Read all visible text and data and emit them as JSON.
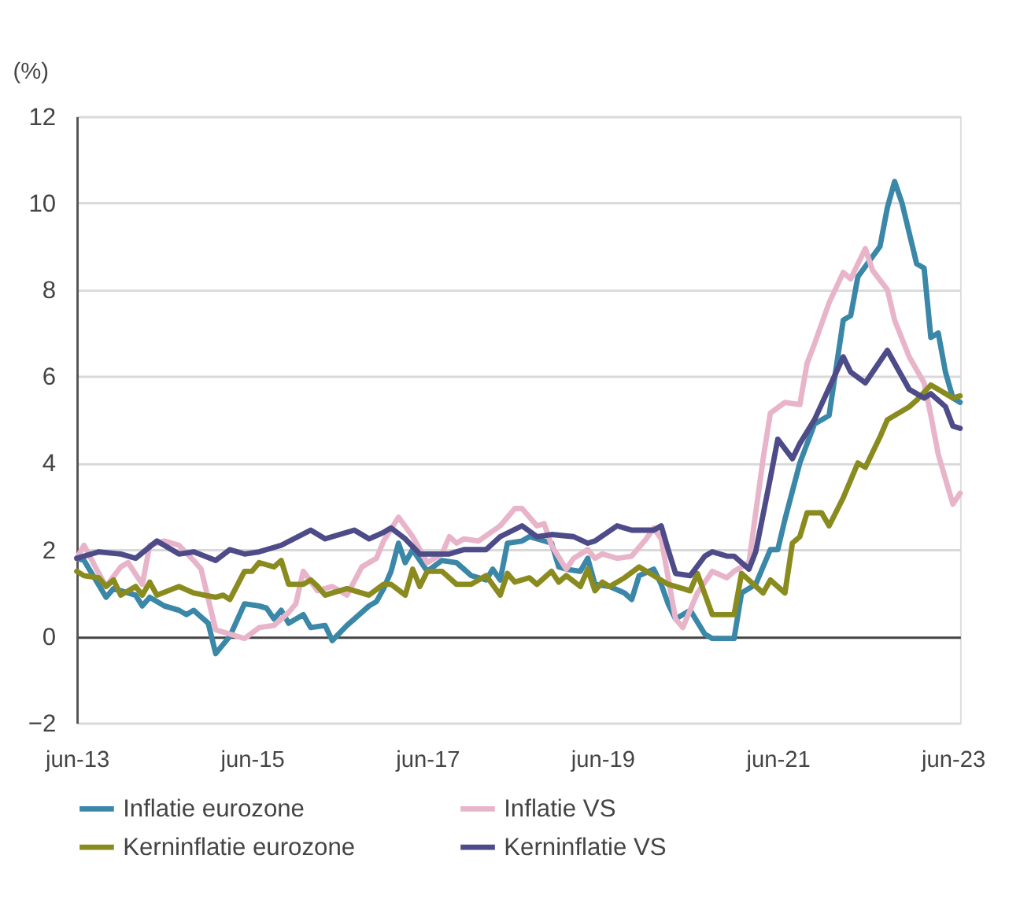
{
  "chart_data": {
    "type": "line",
    "ylabel": "(%)",
    "xlim": [
      "2013-06",
      "2023-07"
    ],
    "xticks": [
      {
        "value": "2013-06",
        "label": "jun-13"
      },
      {
        "value": "2015-06",
        "label": "jun-15"
      },
      {
        "value": "2017-06",
        "label": "jun-17"
      },
      {
        "value": "2019-06",
        "label": "jun-19"
      },
      {
        "value": "2021-06",
        "label": "jun-21"
      },
      {
        "value": "2023-06",
        "label": "jun-23"
      }
    ],
    "ylim": [
      -2,
      12
    ],
    "yticks": [
      -2,
      0,
      2,
      4,
      6,
      8,
      10,
      12
    ],
    "grid": "y",
    "legend": "bottom",
    "marker": "none",
    "line_style": "solid",
    "series": [
      {
        "name": "Inflatie eurozone",
        "color": "#3a87a8",
        "x": [
          "2013-06",
          "2013-07",
          "2013-10",
          "2013-11",
          "2014-02",
          "2014-03",
          "2014-04",
          "2014-06",
          "2014-08",
          "2014-09",
          "2014-10",
          "2014-12",
          "2015-01",
          "2015-03",
          "2015-05",
          "2015-07",
          "2015-08",
          "2015-09",
          "2015-10",
          "2015-11",
          "2016-01",
          "2016-02",
          "2016-04",
          "2016-05",
          "2016-07",
          "2016-08",
          "2016-10",
          "2016-11",
          "2016-12",
          "2017-01",
          "2017-02",
          "2017-03",
          "2017-04",
          "2017-06",
          "2017-08",
          "2017-10",
          "2017-11",
          "2017-12",
          "2018-02",
          "2018-03",
          "2018-04",
          "2018-05",
          "2018-07",
          "2018-08",
          "2018-09",
          "2018-11",
          "2018-12",
          "2019-01",
          "2019-03",
          "2019-04",
          "2019-05",
          "2019-07",
          "2019-09",
          "2019-10",
          "2019-11",
          "2020-01",
          "2020-02",
          "2020-03",
          "2020-04",
          "2020-06",
          "2020-08",
          "2020-09",
          "2020-12",
          "2021-01",
          "2021-03",
          "2021-05",
          "2021-06",
          "2021-07",
          "2021-09",
          "2021-11",
          "2022-01",
          "2022-03",
          "2022-04",
          "2022-05",
          "2022-08",
          "2022-09",
          "2022-10",
          "2022-11",
          "2023-01",
          "2023-02",
          "2023-03",
          "2023-04",
          "2023-05",
          "2023-06",
          "2023-07"
        ],
        "values": [
          1.8,
          1.75,
          0.9,
          1.1,
          0.95,
          0.7,
          0.9,
          0.7,
          0.6,
          0.5,
          0.6,
          0.3,
          -0.4,
          0.0,
          0.75,
          0.7,
          0.65,
          0.4,
          0.6,
          0.3,
          0.5,
          0.2,
          0.25,
          -0.1,
          0.25,
          0.4,
          0.7,
          0.8,
          1.1,
          1.5,
          2.15,
          1.7,
          2.0,
          1.5,
          1.75,
          1.7,
          1.55,
          1.4,
          1.3,
          1.55,
          1.3,
          2.15,
          2.2,
          2.3,
          2.25,
          2.15,
          1.6,
          1.55,
          1.5,
          1.8,
          1.2,
          1.15,
          1.0,
          0.85,
          1.4,
          1.55,
          1.2,
          0.75,
          0.4,
          0.6,
          0.05,
          -0.05,
          -0.05,
          1.0,
          1.2,
          2.0,
          2.0,
          2.7,
          4.0,
          4.9,
          5.1,
          7.3,
          7.4,
          8.3,
          9.0,
          9.9,
          10.5,
          10.0,
          8.6,
          8.5,
          6.9,
          7.0,
          6.1,
          5.5,
          5.4
        ]
      },
      {
        "name": "Inflatie VS",
        "color": "#e8b4c9",
        "x": [
          "2013-06",
          "2013-07",
          "2013-09",
          "2013-10",
          "2013-12",
          "2014-01",
          "2014-03",
          "2014-04",
          "2014-06",
          "2014-08",
          "2014-10",
          "2014-11",
          "2015-01",
          "2015-02",
          "2015-05",
          "2015-07",
          "2015-09",
          "2015-11",
          "2015-12",
          "2016-01",
          "2016-03",
          "2016-05",
          "2016-07",
          "2016-09",
          "2016-11",
          "2016-12",
          "2017-02",
          "2017-04",
          "2017-06",
          "2017-08",
          "2017-09",
          "2017-10",
          "2017-11",
          "2018-01",
          "2018-04",
          "2018-06",
          "2018-07",
          "2018-09",
          "2018-10",
          "2018-11",
          "2019-01",
          "2019-02",
          "2019-04",
          "2019-05",
          "2019-06",
          "2019-08",
          "2019-10",
          "2019-12",
          "2020-01",
          "2020-02",
          "2020-04",
          "2020-05",
          "2020-07",
          "2020-09",
          "2020-11",
          "2020-12",
          "2021-02",
          "2021-03",
          "2021-04",
          "2021-05",
          "2021-07",
          "2021-09",
          "2021-10",
          "2021-11",
          "2022-01",
          "2022-03",
          "2022-04",
          "2022-06",
          "2022-07",
          "2022-09",
          "2022-10",
          "2022-12",
          "2023-02",
          "2023-03",
          "2023-04",
          "2023-06",
          "2023-07"
        ],
        "values": [
          1.8,
          2.1,
          1.45,
          1.15,
          1.6,
          1.7,
          1.2,
          2.1,
          2.2,
          2.1,
          1.75,
          1.55,
          0.15,
          0.1,
          -0.05,
          0.2,
          0.25,
          0.55,
          0.75,
          1.5,
          1.05,
          1.15,
          0.95,
          1.6,
          1.8,
          2.2,
          2.75,
          2.3,
          1.7,
          1.9,
          2.3,
          2.15,
          2.25,
          2.2,
          2.55,
          2.95,
          2.95,
          2.55,
          2.6,
          2.1,
          1.55,
          1.8,
          2.0,
          1.8,
          1.9,
          1.8,
          1.85,
          2.25,
          2.5,
          2.25,
          0.4,
          0.2,
          1.0,
          1.5,
          1.35,
          1.5,
          1.7,
          2.85,
          4.1,
          5.15,
          5.4,
          5.35,
          6.3,
          6.75,
          7.7,
          8.4,
          8.25,
          8.95,
          8.45,
          8.0,
          7.3,
          6.45,
          5.85,
          5.1,
          4.2,
          3.05,
          3.3
        ]
      },
      {
        "name": "Kerninflatie eurozone",
        "color": "#8a8b1e",
        "x": [
          "2013-06",
          "2013-07",
          "2013-09",
          "2013-10",
          "2013-11",
          "2013-12",
          "2014-02",
          "2014-03",
          "2014-04",
          "2014-05",
          "2014-08",
          "2014-10",
          "2015-01",
          "2015-02",
          "2015-03",
          "2015-05",
          "2015-06",
          "2015-07",
          "2015-09",
          "2015-10",
          "2015-11",
          "2015-12",
          "2016-01",
          "2016-02",
          "2016-03",
          "2016-04",
          "2016-07",
          "2016-10",
          "2016-12",
          "2017-01",
          "2017-03",
          "2017-04",
          "2017-05",
          "2017-06",
          "2017-08",
          "2017-10",
          "2017-12",
          "2018-02",
          "2018-04",
          "2018-05",
          "2018-06",
          "2018-08",
          "2018-09",
          "2018-11",
          "2018-12",
          "2019-01",
          "2019-03",
          "2019-04",
          "2019-05",
          "2019-06",
          "2019-07",
          "2019-09",
          "2019-11",
          "2020-01",
          "2020-03",
          "2020-05",
          "2020-06",
          "2020-07",
          "2020-09",
          "2020-12",
          "2021-01",
          "2021-04",
          "2021-05",
          "2021-07",
          "2021-08",
          "2021-09",
          "2021-10",
          "2021-12",
          "2022-01",
          "2022-03",
          "2022-05",
          "2022-06",
          "2022-08",
          "2022-09",
          "2022-11",
          "2022-12",
          "2023-01",
          "2023-03",
          "2023-04",
          "2023-06",
          "2023-07"
        ],
        "values": [
          1.5,
          1.4,
          1.35,
          1.15,
          1.3,
          0.95,
          1.15,
          0.95,
          1.25,
          0.95,
          1.15,
          1.0,
          0.9,
          0.95,
          0.85,
          1.5,
          1.5,
          1.7,
          1.6,
          1.75,
          1.2,
          1.2,
          1.2,
          1.3,
          1.15,
          0.95,
          1.1,
          0.95,
          1.2,
          1.2,
          0.95,
          1.55,
          1.15,
          1.5,
          1.5,
          1.2,
          1.2,
          1.4,
          0.95,
          1.45,
          1.25,
          1.35,
          1.2,
          1.5,
          1.25,
          1.4,
          1.15,
          1.55,
          1.05,
          1.25,
          1.15,
          1.35,
          1.6,
          1.4,
          1.2,
          1.1,
          1.05,
          1.45,
          0.5,
          0.5,
          1.45,
          1.0,
          1.3,
          1.0,
          2.15,
          2.3,
          2.85,
          2.85,
          2.55,
          3.2,
          4.0,
          3.9,
          4.6,
          5.0,
          5.2,
          5.3,
          5.45,
          5.8,
          5.7,
          5.5,
          5.55
        ]
      },
      {
        "name": "Kerninflatie VS",
        "color": "#4e4b89",
        "x": [
          "2013-06",
          "2013-09",
          "2013-12",
          "2014-02",
          "2014-05",
          "2014-08",
          "2014-10",
          "2015-01",
          "2015-03",
          "2015-05",
          "2015-07",
          "2015-10",
          "2016-02",
          "2016-04",
          "2016-06",
          "2016-08",
          "2016-10",
          "2016-12",
          "2017-01",
          "2017-03",
          "2017-05",
          "2017-09",
          "2017-11",
          "2018-02",
          "2018-04",
          "2018-07",
          "2018-09",
          "2018-11",
          "2019-02",
          "2019-04",
          "2019-05",
          "2019-08",
          "2019-10",
          "2020-01",
          "2020-02",
          "2020-03",
          "2020-04",
          "2020-06",
          "2020-08",
          "2020-09",
          "2020-11",
          "2020-12",
          "2021-02",
          "2021-03",
          "2021-05",
          "2021-06",
          "2021-08",
          "2021-09",
          "2021-11",
          "2022-03",
          "2022-04",
          "2022-06",
          "2022-09",
          "2022-12",
          "2023-02",
          "2023-03",
          "2023-05",
          "2023-06",
          "2023-07"
        ],
        "values": [
          1.8,
          1.95,
          1.9,
          1.8,
          2.2,
          1.9,
          1.95,
          1.75,
          2.0,
          1.9,
          1.95,
          2.1,
          2.45,
          2.25,
          2.35,
          2.45,
          2.25,
          2.4,
          2.5,
          2.25,
          1.9,
          1.9,
          2.0,
          2.0,
          2.3,
          2.55,
          2.3,
          2.35,
          2.3,
          2.15,
          2.2,
          2.55,
          2.45,
          2.45,
          2.55,
          2.0,
          1.45,
          1.4,
          1.85,
          1.95,
          1.85,
          1.85,
          1.55,
          1.95,
          3.65,
          4.55,
          4.1,
          4.45,
          5.0,
          6.45,
          6.1,
          5.85,
          6.6,
          5.7,
          5.5,
          5.6,
          5.3,
          4.85,
          4.8
        ]
      }
    ]
  }
}
